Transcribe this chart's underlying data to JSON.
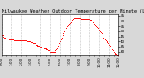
{
  "title": "Milwaukee Weather Outdoor Temperature per Minute (Last 24 Hours)",
  "background_color": "#d8d8d8",
  "plot_bg_color": "#ffffff",
  "line_color": "#ff0000",
  "grid_color": "#888888",
  "ylim": [
    27,
    67
  ],
  "yticks": [
    30,
    35,
    40,
    45,
    50,
    55,
    60,
    65
  ],
  "ytick_labels": [
    "30",
    "35",
    "40",
    "45",
    "50",
    "55",
    "60",
    "65"
  ],
  "title_fontsize": 3.8,
  "tick_fontsize": 3.0,
  "marker_size": 0.7,
  "x_values": [
    0,
    1,
    2,
    3,
    4,
    5,
    6,
    7,
    8,
    9,
    10,
    11,
    12,
    13,
    14,
    15,
    16,
    17,
    18,
    19,
    20,
    21,
    22,
    23,
    24,
    25,
    26,
    27,
    28,
    29,
    30,
    31,
    32,
    33,
    34,
    35,
    36,
    37,
    38,
    39,
    40,
    41,
    42,
    43,
    44,
    45,
    46,
    47,
    48,
    49,
    50,
    51,
    52,
    53,
    54,
    55,
    56,
    57,
    58,
    59,
    60,
    61,
    62,
    63,
    64,
    65,
    66,
    67,
    68,
    69,
    70,
    71,
    72,
    73,
    74,
    75,
    76,
    77,
    78,
    79,
    80,
    81,
    82,
    83,
    84,
    85,
    86,
    87,
    88,
    89,
    90,
    91,
    92,
    93,
    94,
    95,
    96,
    97,
    98,
    99,
    100,
    101,
    102,
    103,
    104,
    105,
    106,
    107,
    108,
    109,
    110,
    111,
    112,
    113,
    114,
    115,
    116,
    117,
    118,
    119,
    120,
    121,
    122,
    123,
    124,
    125,
    126,
    127,
    128,
    129,
    130,
    131,
    132,
    133,
    134,
    135,
    136,
    137,
    138,
    139,
    140,
    141,
    142,
    143
  ],
  "y_values": [
    46,
    46,
    45,
    45,
    44,
    44,
    43,
    43,
    43,
    42,
    42,
    42,
    42,
    42,
    42,
    42,
    41,
    41,
    41,
    41,
    41,
    41,
    41,
    41,
    41,
    41,
    41,
    41,
    41,
    41,
    41,
    40,
    40,
    40,
    40,
    40,
    39,
    39,
    39,
    38,
    38,
    38,
    37,
    37,
    36,
    36,
    36,
    35,
    35,
    35,
    34,
    34,
    33,
    33,
    33,
    32,
    32,
    31,
    31,
    31,
    30,
    30,
    30,
    30,
    30,
    30,
    31,
    32,
    33,
    34,
    36,
    38,
    40,
    42,
    44,
    46,
    48,
    50,
    52,
    53,
    54,
    55,
    56,
    57,
    58,
    59,
    60,
    61,
    62,
    63,
    63,
    63,
    63,
    63,
    63,
    63,
    63,
    62,
    62,
    62,
    62,
    62,
    63,
    62,
    62,
    62,
    62,
    62,
    62,
    61,
    61,
    60,
    59,
    58,
    57,
    56,
    55,
    54,
    53,
    52,
    51,
    50,
    49,
    48,
    46,
    44,
    43,
    42,
    41,
    40,
    39,
    38,
    37,
    36,
    34,
    33,
    32,
    31,
    30,
    29,
    28,
    28,
    27,
    27
  ],
  "xtick_positions": [
    0,
    6,
    12,
    18,
    24,
    30,
    36,
    42,
    48,
    54,
    60,
    66,
    72,
    78,
    84,
    90,
    96,
    102,
    108,
    114,
    120,
    126,
    132,
    138,
    143
  ],
  "xtick_labels": [
    "0:00",
    "",
    "1:00",
    "",
    "2:00",
    "",
    "3:00",
    "",
    "4:00",
    "",
    "5:00",
    "",
    "6:00",
    "",
    "7:00",
    "",
    "8:00",
    "",
    "9:00",
    "",
    "10:00",
    "",
    "11:00",
    "",
    "12:00"
  ],
  "grid_xtick_positions": [
    0,
    12,
    24,
    36,
    48,
    60,
    72,
    84,
    96,
    108,
    120,
    132,
    143
  ]
}
